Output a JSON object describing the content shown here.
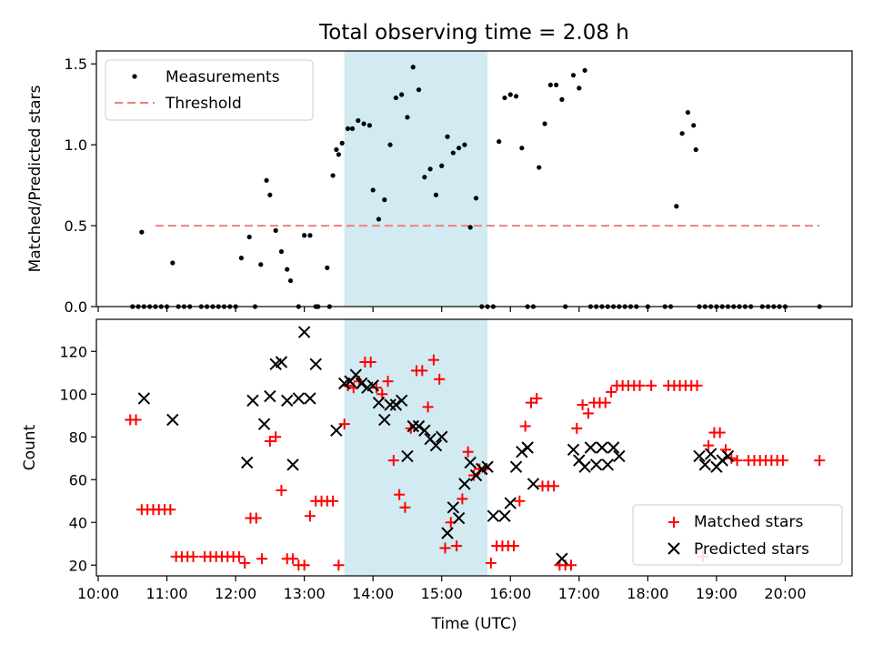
{
  "chart_data": [
    {
      "type": "scatter",
      "title": "Total observing time = 2.08 h",
      "xlabel": "",
      "ylabel": "Matched/Predicted stars",
      "ylim": [
        0,
        1.58
      ],
      "yticks": [
        "0.0",
        "0.5",
        "1.0",
        "1.5"
      ],
      "shaded_span": [
        "13:35",
        "15:40"
      ],
      "threshold": 0.5,
      "legend_position": "top-left",
      "series": [
        {
          "name": "Measurements",
          "marker": "dot",
          "color": "#000000",
          "x": [
            "10:30",
            "10:35",
            "10:40",
            "10:38",
            "10:45",
            "10:50",
            "10:55",
            "11:00",
            "11:05",
            "11:10",
            "11:15",
            "11:20",
            "11:30",
            "11:35",
            "11:40",
            "11:45",
            "11:50",
            "11:55",
            "12:00",
            "12:05",
            "12:12",
            "12:17",
            "12:22",
            "12:27",
            "12:30",
            "12:35",
            "12:40",
            "12:45",
            "12:48",
            "12:55",
            "13:00",
            "13:05",
            "13:10",
            "13:12",
            "13:20",
            "13:22",
            "13:25",
            "13:28",
            "13:30",
            "13:33",
            "13:38",
            "13:42",
            "13:47",
            "13:52",
            "13:57",
            "14:00",
            "14:05",
            "14:10",
            "14:15",
            "14:20",
            "14:25",
            "14:30",
            "14:35",
            "14:40",
            "14:45",
            "14:50",
            "14:55",
            "15:00",
            "15:05",
            "15:10",
            "15:15",
            "15:20",
            "15:25",
            "15:30",
            "15:35",
            "15:40",
            "15:45",
            "15:50",
            "15:55",
            "16:00",
            "16:05",
            "16:10",
            "16:15",
            "16:20",
            "16:25",
            "16:30",
            "16:35",
            "16:40",
            "16:45",
            "16:48",
            "16:55",
            "17:00",
            "17:05",
            "17:10",
            "17:15",
            "17:20",
            "17:25",
            "17:30",
            "17:35",
            "17:40",
            "17:45",
            "17:50",
            "18:00",
            "18:15",
            "18:20",
            "18:25",
            "18:30",
            "18:35",
            "18:40",
            "18:42",
            "18:45",
            "18:50",
            "18:55",
            "19:00",
            "19:05",
            "19:10",
            "19:15",
            "19:20",
            "19:25",
            "19:30",
            "19:40",
            "19:45",
            "19:50",
            "19:55",
            "20:00",
            "20:30"
          ],
          "y": [
            0,
            0,
            0,
            0.46,
            0,
            0,
            0,
            0,
            0.27,
            0,
            0,
            0,
            0,
            0,
            0,
            0,
            0,
            0,
            0,
            0.3,
            0.43,
            0,
            0.26,
            0.78,
            0.69,
            0.47,
            0.34,
            0.23,
            0.16,
            0,
            0.44,
            0.44,
            0,
            0,
            0.24,
            0,
            0.81,
            0.97,
            0.94,
            1.01,
            1.1,
            1.1,
            1.15,
            1.13,
            1.12,
            0.72,
            0.54,
            0.66,
            1.0,
            1.29,
            1.31,
            1.17,
            1.48,
            1.34,
            0.8,
            0.85,
            0.69,
            0.87,
            1.05,
            0.95,
            0.98,
            1.0,
            0.49,
            0.67,
            0,
            0,
            0,
            1.02,
            1.29,
            1.31,
            1.3,
            0.98,
            0,
            0,
            0.86,
            1.13,
            1.37,
            1.37,
            1.28,
            0,
            1.43,
            1.35,
            1.46,
            0,
            0,
            0,
            0,
            0,
            0,
            0,
            0,
            0,
            0,
            0,
            0,
            0.62,
            1.07,
            1.2,
            1.12,
            0.97,
            0,
            0,
            0,
            0,
            0,
            0,
            0,
            0,
            0,
            0,
            0,
            0,
            0,
            0,
            0,
            0
          ],
          "x_note": ""
        },
        {
          "name": "Threshold",
          "marker": "dashed-line",
          "color": "#f08080",
          "x": [
            "10:50",
            "20:30"
          ],
          "y": [
            0.5,
            0.5
          ]
        }
      ]
    },
    {
      "type": "scatter",
      "title": "",
      "xlabel": "Time (UTC)",
      "ylabel": "Count",
      "ylim": [
        15,
        135
      ],
      "yticks": [
        "20",
        "40",
        "60",
        "80",
        "100",
        "120"
      ],
      "xticks": [
        "10:00",
        "11:00",
        "12:00",
        "13:00",
        "14:00",
        "15:00",
        "16:00",
        "17:00",
        "18:00",
        "19:00",
        "20:00"
      ],
      "xlim": [
        "10:00",
        "21:00"
      ],
      "shaded_span": [
        "13:35",
        "15:40"
      ],
      "legend_position": "bottom-right",
      "series": [
        {
          "name": "Matched stars",
          "marker": "plus",
          "color": "#ff0000",
          "x": [
            "10:28",
            "10:33",
            "10:38",
            "10:43",
            "10:48",
            "10:53",
            "10:58",
            "11:03",
            "11:08",
            "11:13",
            "11:18",
            "11:23",
            "11:33",
            "11:38",
            "11:43",
            "11:48",
            "11:53",
            "11:58",
            "12:03",
            "12:08",
            "12:13",
            "12:18",
            "12:23",
            "12:30",
            "12:35",
            "12:40",
            "12:45",
            "12:50",
            "12:55",
            "13:00",
            "13:05",
            "13:10",
            "13:15",
            "13:20",
            "13:25",
            "13:30",
            "13:35",
            "13:38",
            "13:43",
            "13:48",
            "13:53",
            "13:58",
            "14:03",
            "14:08",
            "14:13",
            "14:18",
            "14:23",
            "14:28",
            "14:33",
            "14:38",
            "14:43",
            "14:48",
            "14:53",
            "14:58",
            "15:03",
            "15:08",
            "15:13",
            "15:18",
            "15:23",
            "15:28",
            "15:33",
            "15:38",
            "15:43",
            "15:48",
            "15:53",
            "15:58",
            "16:03",
            "16:08",
            "16:13",
            "16:18",
            "16:23",
            "16:28",
            "16:33",
            "16:38",
            "16:43",
            "16:48",
            "16:53",
            "16:58",
            "17:03",
            "17:08",
            "17:13",
            "17:18",
            "17:23",
            "17:28",
            "17:33",
            "17:38",
            "17:43",
            "17:48",
            "17:53",
            "18:03",
            "18:18",
            "18:23",
            "18:28",
            "18:33",
            "18:38",
            "18:43",
            "18:48",
            "18:53",
            "18:58",
            "19:03",
            "19:08",
            "19:13",
            "19:18",
            "19:28",
            "19:33",
            "19:38",
            "19:43",
            "19:48",
            "19:53",
            "19:58",
            "20:30"
          ],
          "y": [
            88,
            88,
            46,
            46,
            46,
            46,
            46,
            46,
            24,
            24,
            24,
            24,
            24,
            24,
            24,
            24,
            24,
            24,
            24,
            21,
            42,
            42,
            23,
            78,
            80,
            55,
            23,
            23,
            20,
            20,
            43,
            50,
            50,
            50,
            50,
            20,
            86,
            104,
            103,
            106,
            115,
            115,
            103,
            100,
            106,
            69,
            53,
            47,
            84,
            111,
            111,
            94,
            116,
            107,
            28,
            40,
            29,
            51,
            73,
            62,
            65,
            65,
            21,
            29,
            29,
            29,
            29,
            50,
            85,
            96,
            98,
            57,
            57,
            57,
            20,
            20,
            20,
            84,
            95,
            91,
            96,
            96,
            96,
            101,
            104,
            104,
            104,
            104,
            104,
            104,
            104,
            104,
            104,
            104,
            104,
            104,
            24,
            76,
            82,
            82,
            74,
            70,
            69,
            69,
            69,
            69,
            69,
            69,
            69,
            69,
            69
          ]
        },
        {
          "name": "Predicted stars",
          "marker": "x",
          "color": "#000000",
          "x": [
            "10:40",
            "11:05",
            "12:10",
            "12:15",
            "12:25",
            "12:30",
            "12:35",
            "12:40",
            "12:45",
            "12:50",
            "12:55",
            "13:00",
            "13:05",
            "13:10",
            "13:28",
            "13:35",
            "13:40",
            "13:45",
            "13:50",
            "13:55",
            "14:00",
            "14:05",
            "14:10",
            "14:15",
            "14:20",
            "14:25",
            "14:30",
            "14:35",
            "14:40",
            "14:45",
            "14:50",
            "14:55",
            "15:00",
            "15:05",
            "15:10",
            "15:15",
            "15:20",
            "15:25",
            "15:30",
            "15:35",
            "15:40",
            "15:45",
            "15:55",
            "16:00",
            "16:05",
            "16:10",
            "16:15",
            "16:20",
            "16:45",
            "16:55",
            "17:00",
            "17:05",
            "17:10",
            "17:15",
            "17:20",
            "17:25",
            "17:30",
            "17:35",
            "18:45",
            "18:50",
            "18:55",
            "19:00",
            "19:05",
            "19:10"
          ],
          "y": [
            98,
            88,
            68,
            97,
            86,
            99,
            114,
            115,
            97,
            67,
            98,
            129,
            98,
            114,
            83,
            105,
            106,
            109,
            105,
            103,
            104,
            96,
            88,
            95,
            95,
            97,
            71,
            85,
            85,
            83,
            79,
            76,
            80,
            35,
            47,
            42,
            58,
            68,
            62,
            65,
            66,
            43,
            43,
            49,
            66,
            73,
            75,
            58,
            23,
            74,
            69,
            66,
            75,
            67,
            75,
            67,
            75,
            71,
            71,
            67,
            72,
            66,
            69,
            71
          ]
        }
      ]
    }
  ]
}
